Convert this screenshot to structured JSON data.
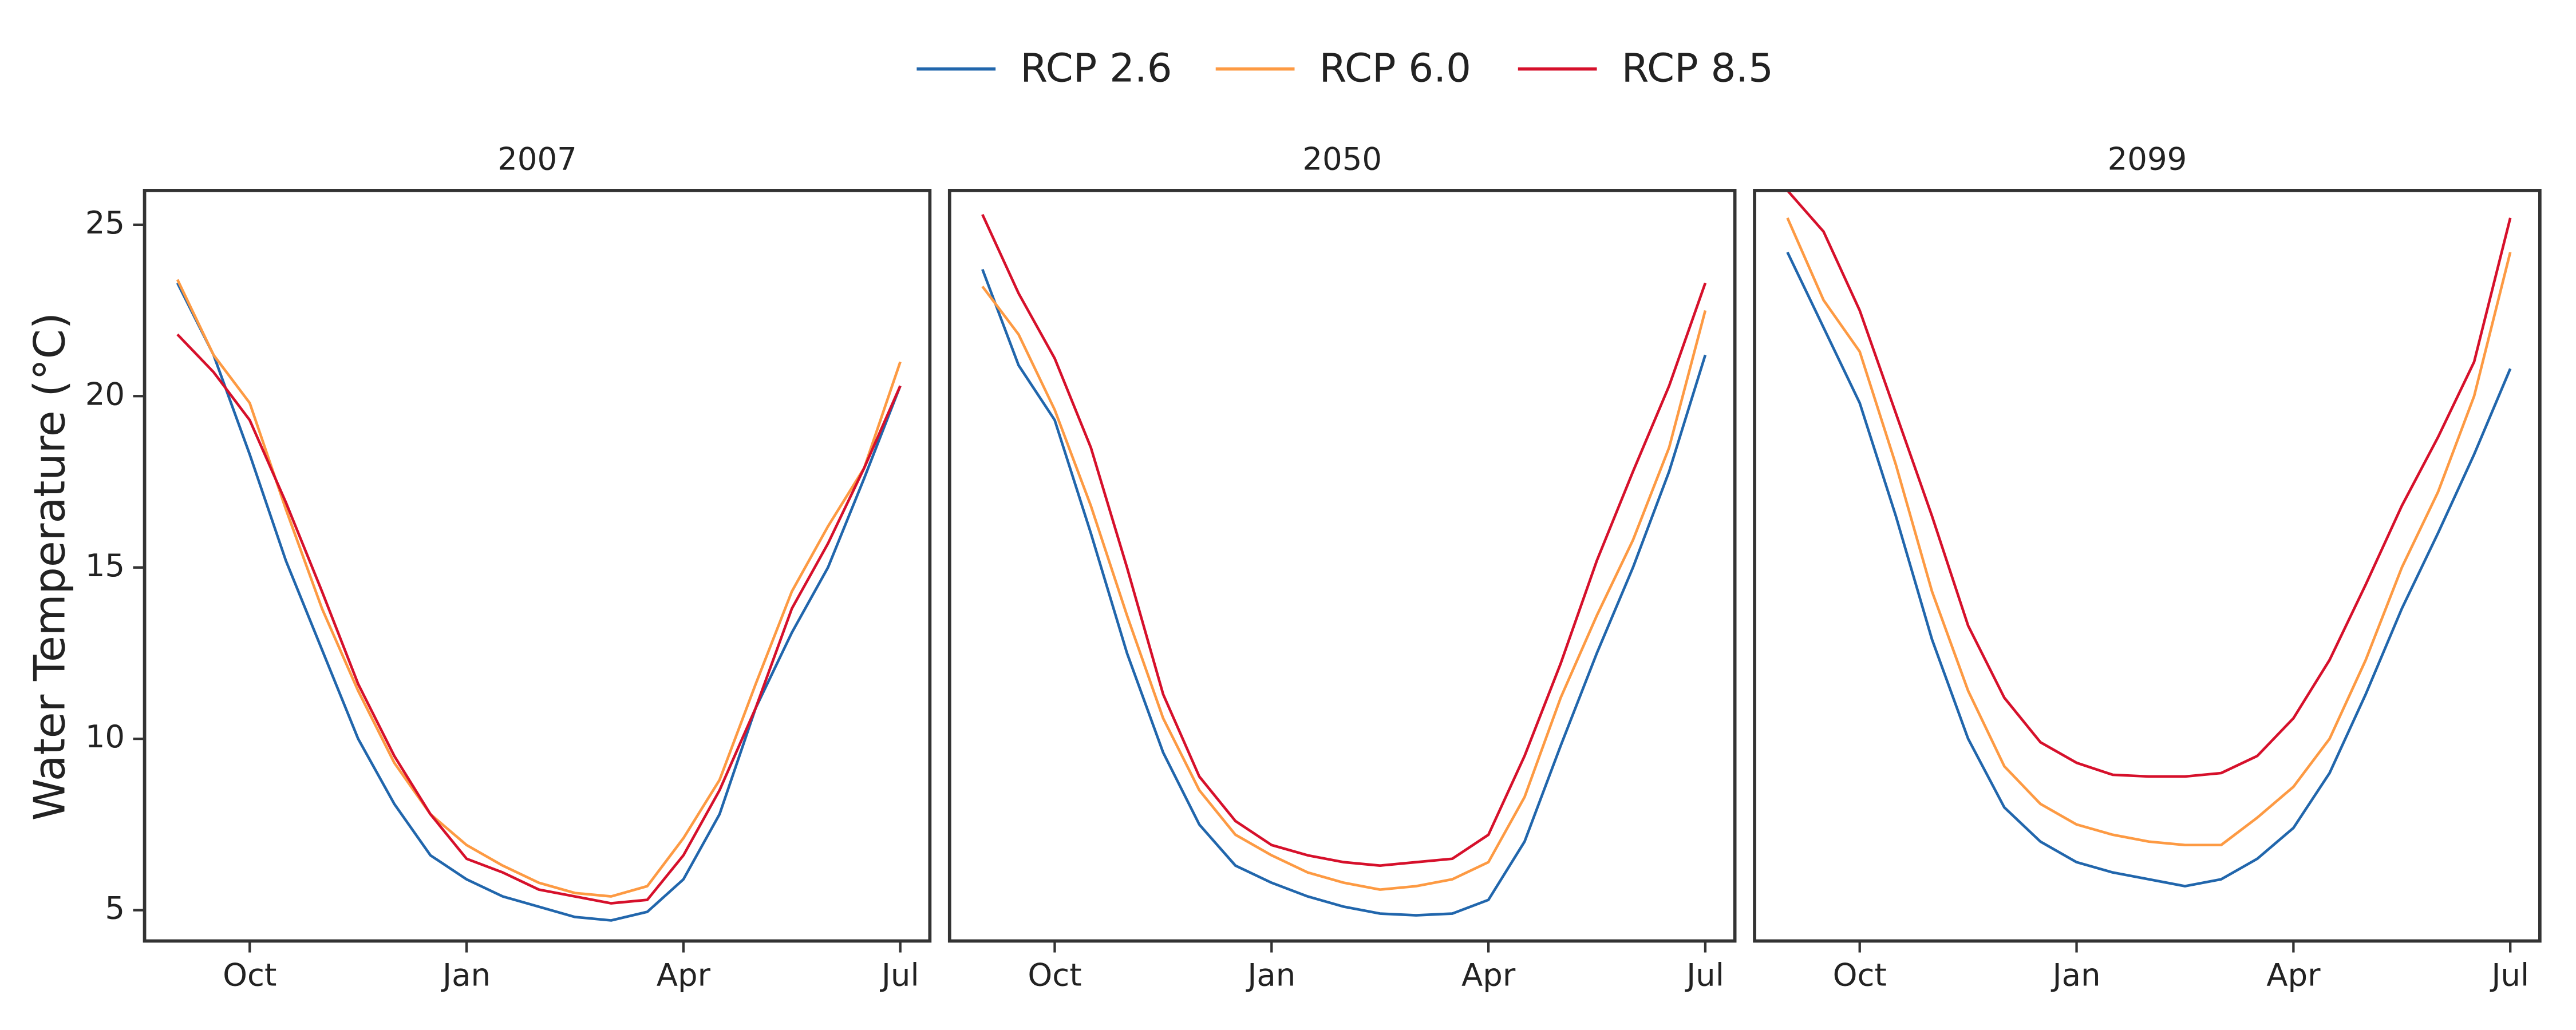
{
  "chart_data": [
    {
      "type": "line",
      "title": "2007",
      "y_label": "Water Temperature (°C)",
      "categories": [
        null,
        null,
        "Oct",
        null,
        null,
        null,
        null,
        null,
        "Jan",
        null,
        null,
        null,
        null,
        null,
        "Apr",
        null,
        null,
        null,
        null,
        null,
        "Jul"
      ],
      "ylim": [
        4.1,
        26
      ],
      "yticks": [
        5,
        10,
        15,
        20,
        25
      ],
      "series": [
        {
          "name": "RCP 2.6",
          "color": "#2166ac",
          "values": [
            23.3,
            21.2,
            18.3,
            15.2,
            12.6,
            10.0,
            8.1,
            6.6,
            5.9,
            5.4,
            5.1,
            4.8,
            4.7,
            4.95,
            5.9,
            7.8,
            10.9,
            13.1,
            15.0,
            17.6,
            20.3
          ]
        },
        {
          "name": "RCP 6.0",
          "color": "#fd9a43",
          "values": [
            23.4,
            21.2,
            19.8,
            16.7,
            13.8,
            11.4,
            9.3,
            7.8,
            6.9,
            6.3,
            5.8,
            5.5,
            5.4,
            5.7,
            7.1,
            8.8,
            11.6,
            14.3,
            16.2,
            17.9,
            21.0
          ]
        },
        {
          "name": "RCP 8.5",
          "color": "#d6102b",
          "values": [
            21.8,
            20.7,
            19.3,
            16.9,
            14.3,
            11.6,
            9.5,
            7.8,
            6.5,
            6.1,
            5.6,
            5.4,
            5.2,
            5.3,
            6.6,
            8.5,
            10.9,
            13.8,
            15.7,
            17.9,
            20.3
          ]
        }
      ]
    },
    {
      "type": "line",
      "title": "2050",
      "categories": [
        null,
        null,
        "Oct",
        null,
        null,
        null,
        null,
        null,
        "Jan",
        null,
        null,
        null,
        null,
        null,
        "Apr",
        null,
        null,
        null,
        null,
        null,
        "Jul"
      ],
      "ylim": [
        4.1,
        26
      ],
      "series": [
        {
          "name": "RCP 2.6",
          "color": "#2166ac",
          "values": [
            23.7,
            20.9,
            19.3,
            16.0,
            12.5,
            9.6,
            7.5,
            6.3,
            5.8,
            5.4,
            5.1,
            4.9,
            4.85,
            4.9,
            5.3,
            7.0,
            9.8,
            12.5,
            15.0,
            17.8,
            21.2
          ]
        },
        {
          "name": "RCP 6.0",
          "color": "#fd9a43",
          "values": [
            23.2,
            21.8,
            19.6,
            16.8,
            13.6,
            10.6,
            8.5,
            7.2,
            6.6,
            6.1,
            5.8,
            5.6,
            5.7,
            5.9,
            6.4,
            8.3,
            11.2,
            13.6,
            15.8,
            18.5,
            22.5
          ]
        },
        {
          "name": "RCP 8.5",
          "color": "#d6102b",
          "values": [
            25.3,
            23.0,
            21.1,
            18.5,
            15.0,
            11.3,
            8.9,
            7.6,
            6.9,
            6.6,
            6.4,
            6.3,
            6.4,
            6.5,
            7.2,
            9.5,
            12.2,
            15.2,
            17.8,
            20.3,
            23.3
          ]
        }
      ]
    },
    {
      "type": "line",
      "title": "2099",
      "categories": [
        null,
        null,
        "Oct",
        null,
        null,
        null,
        null,
        null,
        "Jan",
        null,
        null,
        null,
        null,
        null,
        "Apr",
        null,
        null,
        null,
        null,
        null,
        "Jul"
      ],
      "ylim": [
        4.1,
        26
      ],
      "series": [
        {
          "name": "RCP 2.6",
          "color": "#2166ac",
          "values": [
            24.2,
            22.0,
            19.8,
            16.5,
            12.9,
            10.0,
            8.0,
            7.0,
            6.4,
            6.1,
            5.9,
            5.7,
            5.9,
            6.5,
            7.4,
            9.0,
            11.3,
            13.8,
            16.0,
            18.3,
            20.8
          ]
        },
        {
          "name": "RCP 6.0",
          "color": "#fd9a43",
          "values": [
            25.2,
            22.8,
            21.3,
            18.0,
            14.3,
            11.4,
            9.2,
            8.1,
            7.5,
            7.2,
            7.0,
            6.9,
            6.9,
            7.7,
            8.6,
            10.0,
            12.3,
            15.0,
            17.2,
            20.0,
            24.2
          ]
        },
        {
          "name": "RCP 8.5",
          "color": "#d6102b",
          "values": [
            26.0,
            24.8,
            22.5,
            19.5,
            16.5,
            13.3,
            11.2,
            9.9,
            9.3,
            8.95,
            8.9,
            8.9,
            9.0,
            9.5,
            10.6,
            12.3,
            14.5,
            16.8,
            18.8,
            21.0,
            25.2
          ]
        }
      ]
    }
  ]
}
